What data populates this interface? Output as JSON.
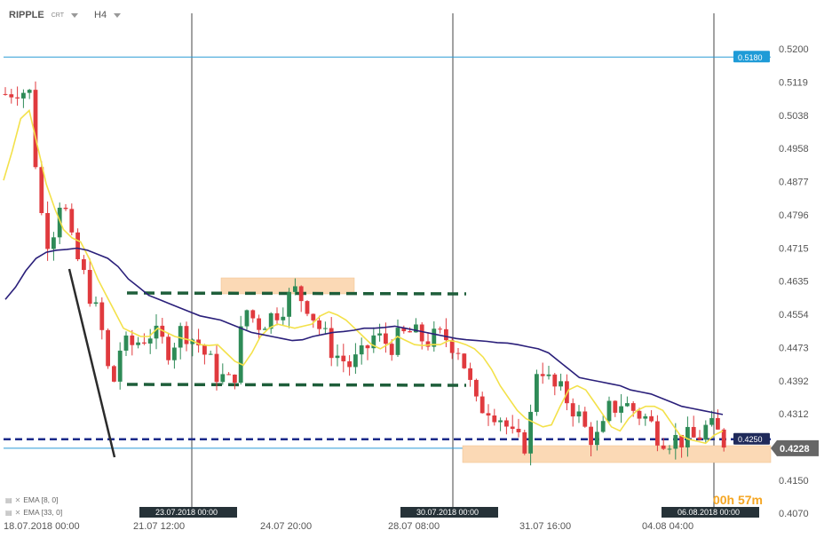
{
  "header": {
    "symbol": "RIPPLE",
    "source": "CRT",
    "timeframe": "H4"
  },
  "price_axis": {
    "labels": [
      "0.5200",
      "0.5119",
      "0.5038",
      "0.4958",
      "0.4877",
      "0.4796",
      "0.4715",
      "0.4635",
      "0.4554",
      "0.4473",
      "0.4392",
      "0.4312",
      "0.4231",
      "0.4150",
      "0.4070"
    ]
  },
  "time_axis": {
    "labels": [
      "18.07.2018  00:00",
      "21.07  12:00",
      "24.07  20:00",
      "28.07  08:00",
      "31.07  16:00",
      "04.08  04:00"
    ],
    "markers": [
      "23.07.2018 00:00",
      "30.07.2018 00:00",
      "06.08.2018 00:00"
    ]
  },
  "badges": {
    "level_high": "0.5180",
    "level_mid": "0.4250",
    "last_price": "0.4228"
  },
  "indicators": [
    {
      "label": "EMA  [8, 0]",
      "color": "#f3e14a"
    },
    {
      "label": "EMA  [33, 0]",
      "color": "#2a1f7a"
    }
  ],
  "timer": "00h 57m",
  "colors": {
    "bull": "#2e8b57",
    "bear": "#e03a3e",
    "ema_fast": "#f3e14a",
    "ema_slow": "#2a1f7a",
    "zone_fill": "#fbd9b5",
    "channel": "#1e5e3a",
    "support": "#1a2a8a",
    "hline": "#2a9bd6",
    "badge_blue": "#1e9bd7",
    "badge_navy": "#1f2a5a",
    "badge_gray": "#666666"
  },
  "chart_data": {
    "type": "candlestick",
    "symbol": "RIPPLE",
    "timeframe": "H4",
    "ylim": [
      0.407,
      0.52
    ],
    "series": [
      {
        "name": "EMA [8, 0]",
        "values": [
          0.488,
          0.495,
          0.503,
          0.505,
          0.496,
          0.487,
          0.481,
          0.476,
          0.474,
          0.473,
          0.469,
          0.464,
          0.46,
          0.456,
          0.452,
          0.451,
          0.45,
          0.45,
          0.452,
          0.451,
          0.45,
          0.4495,
          0.449,
          0.448,
          0.4478,
          0.448,
          0.446,
          0.444,
          0.443,
          0.446,
          0.45,
          0.452,
          0.453,
          0.4525,
          0.452,
          0.4525,
          0.453,
          0.455,
          0.456,
          0.4552,
          0.454,
          0.452,
          0.45,
          0.448,
          0.447,
          0.4482,
          0.45,
          0.449,
          0.448,
          0.4478,
          0.448,
          0.448,
          0.449,
          0.4487,
          0.448,
          0.447,
          0.445,
          0.442,
          0.438,
          0.435,
          0.432,
          0.43,
          0.429,
          0.428,
          0.4285,
          0.433,
          0.437,
          0.438,
          0.437,
          0.434,
          0.431,
          0.428,
          0.427,
          0.43,
          0.432,
          0.433,
          0.433,
          0.432,
          0.429,
          0.426,
          0.425,
          0.4245,
          0.424,
          0.426,
          0.427
        ]
      },
      {
        "name": "EMA [33, 0]",
        "values": [
          0.459,
          0.462,
          0.466,
          0.469,
          0.4705,
          0.471,
          0.4712,
          0.4715,
          0.471,
          0.47,
          0.469,
          0.467,
          0.464,
          0.462,
          0.46,
          0.459,
          0.458,
          0.457,
          0.456,
          0.455,
          0.4545,
          0.454,
          0.453,
          0.452,
          0.451,
          0.4505,
          0.45,
          0.4495,
          0.449,
          0.4492,
          0.45,
          0.4505,
          0.451,
          0.4512,
          0.4515,
          0.452,
          0.452,
          0.4522,
          0.4525,
          0.452,
          0.4515,
          0.451,
          0.4505,
          0.45,
          0.4495,
          0.4492,
          0.449,
          0.4488,
          0.4485,
          0.4484,
          0.448,
          0.4475,
          0.447,
          0.446,
          0.444,
          0.442,
          0.44,
          0.4395,
          0.439,
          0.4385,
          0.438,
          0.437,
          0.4365,
          0.436,
          0.435,
          0.434,
          0.433,
          0.4325,
          0.432,
          0.4315,
          0.431
        ]
      }
    ],
    "horizontal_lines": [
      0.518,
      0.425,
      0.4228
    ],
    "last_price": 0.4228
  }
}
